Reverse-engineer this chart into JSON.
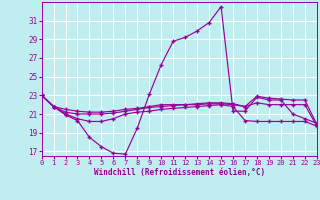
{
  "xlabel": "Windchill (Refroidissement éolien,°C)",
  "bg_color": "#c0eef0",
  "grid_color": "#aadddd",
  "line_color": "#990099",
  "xlim": [
    0,
    23
  ],
  "ylim": [
    16.5,
    33.0
  ],
  "yticks": [
    17,
    19,
    21,
    23,
    25,
    27,
    29,
    31
  ],
  "xticks": [
    0,
    1,
    2,
    3,
    4,
    5,
    6,
    7,
    8,
    9,
    10,
    11,
    12,
    13,
    14,
    15,
    16,
    17,
    18,
    19,
    20,
    21,
    22,
    23
  ],
  "series": [
    [
      23.0,
      21.8,
      20.9,
      20.3,
      18.5,
      17.5,
      16.8,
      16.7,
      19.5,
      23.1,
      26.3,
      28.8,
      29.2,
      29.9,
      30.8,
      32.5,
      21.3,
      21.3,
      22.8,
      22.5,
      22.5,
      21.0,
      20.5,
      20.0
    ],
    [
      23.0,
      21.8,
      21.0,
      20.5,
      20.2,
      20.2,
      20.5,
      21.0,
      21.2,
      21.3,
      21.5,
      21.6,
      21.7,
      21.8,
      21.9,
      22.0,
      21.8,
      20.3,
      20.2,
      20.2,
      20.2,
      20.2,
      20.2,
      19.7
    ],
    [
      23.0,
      21.8,
      21.2,
      21.0,
      21.0,
      21.0,
      21.1,
      21.3,
      21.5,
      21.7,
      21.8,
      21.9,
      22.0,
      22.0,
      22.1,
      22.1,
      22.0,
      21.8,
      22.2,
      22.0,
      22.0,
      22.0,
      22.0,
      19.7
    ],
    [
      23.0,
      21.8,
      21.5,
      21.3,
      21.2,
      21.2,
      21.3,
      21.5,
      21.6,
      21.8,
      22.0,
      22.0,
      22.0,
      22.1,
      22.2,
      22.2,
      22.1,
      21.8,
      22.9,
      22.7,
      22.6,
      22.5,
      22.5,
      19.9
    ]
  ]
}
